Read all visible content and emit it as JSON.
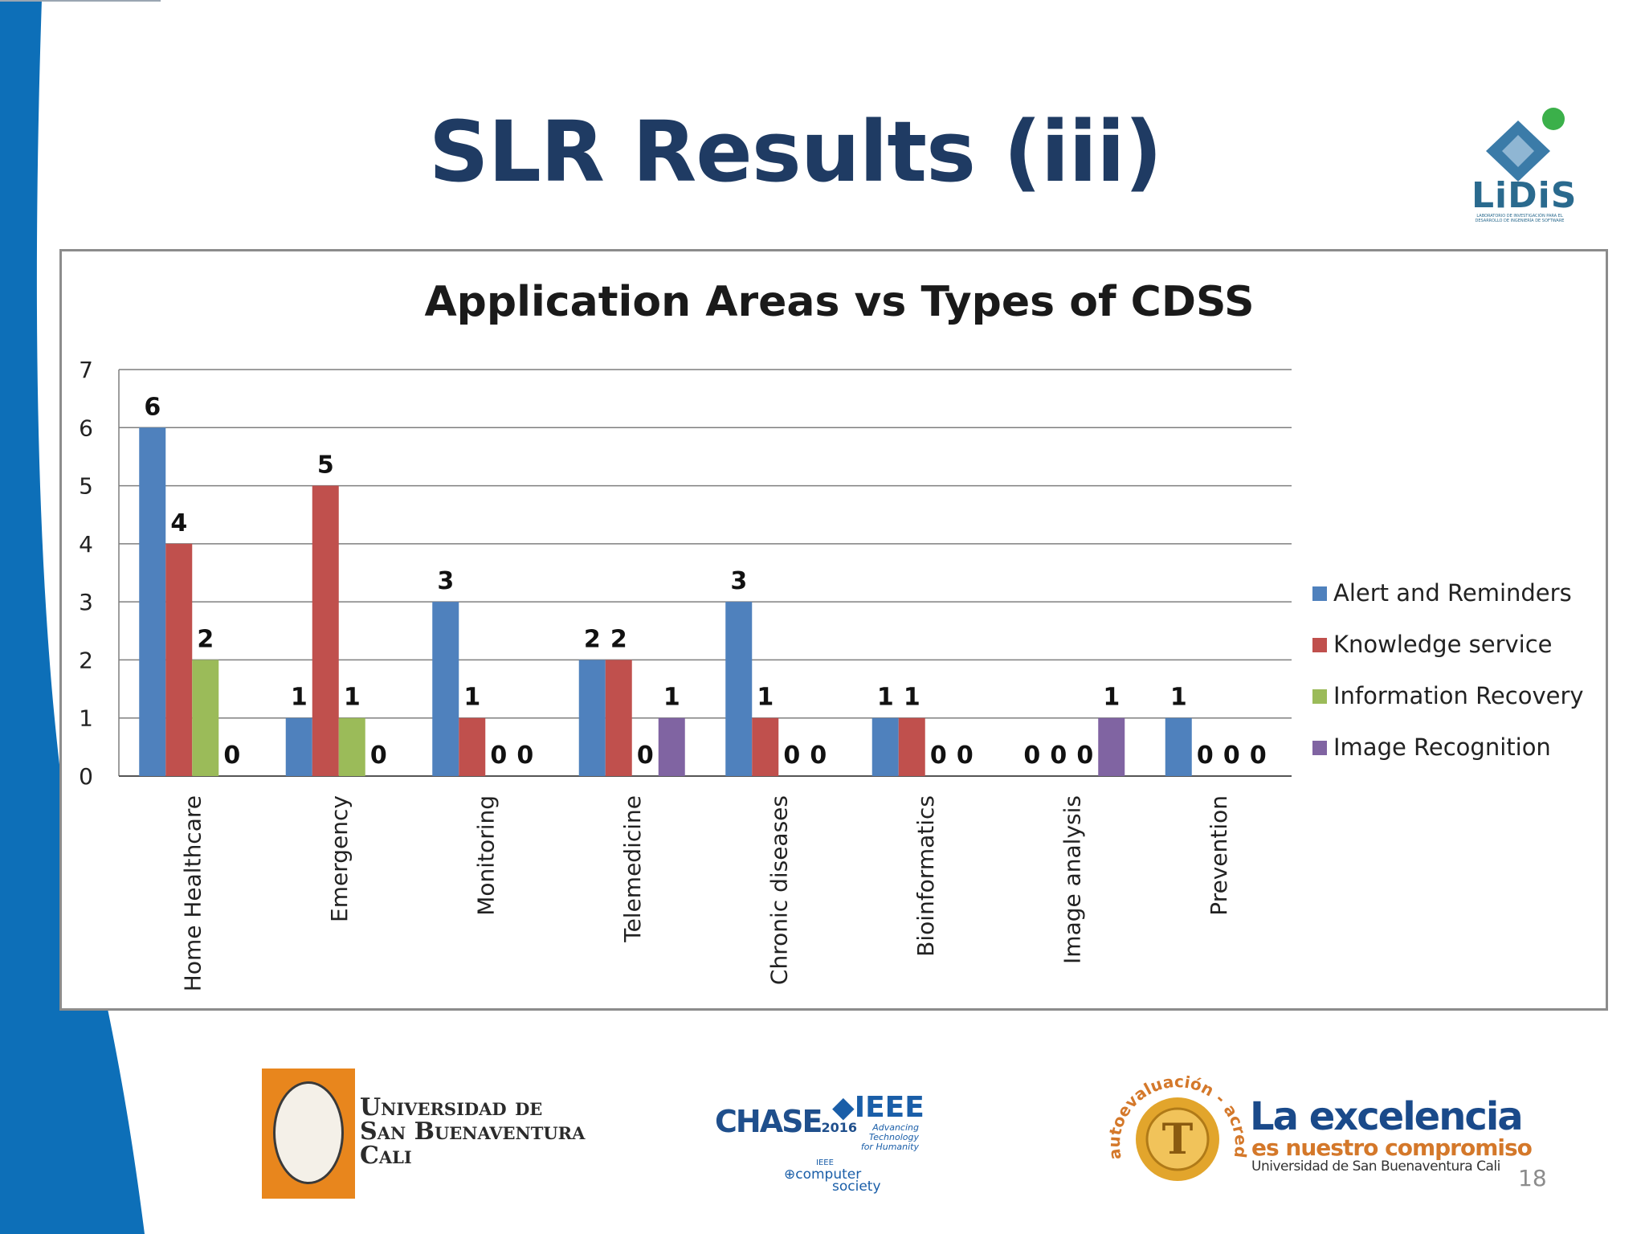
{
  "slide": {
    "title": "SLR Results (iii)",
    "page_number": "18",
    "accent_color": "#0d6fb8",
    "title_color": "#1f3b63"
  },
  "logos": {
    "lidis": {
      "text": "LiDiS",
      "subtext": "LABORATORIO DE INVESTIGACIÓN PARA EL DESARROLLO DE INGENIERÍA DE SOFTWARE"
    },
    "university": {
      "line1": "Universidad de",
      "line2": "San Buenaventura",
      "line3": "Cali"
    },
    "chase": {
      "text": "CHASE",
      "year": "2016"
    },
    "ieee": {
      "text": "IEEE",
      "tagline1": "Advancing Technology",
      "tagline2": "for Humanity"
    },
    "computer_society": {
      "ieee": "IEEE",
      "line1": "computer",
      "line2": "society"
    },
    "accreditation": {
      "arc_text": "autoevaluación - acreditación"
    },
    "excellence": {
      "line1": "La excelencia",
      "line2": "es nuestro compromiso",
      "line3": "Universidad de San Buenaventura Cali"
    }
  },
  "chart_data": {
    "type": "bar",
    "title": "Application Areas vs Types of CDSS",
    "xlabel": "",
    "ylabel": "",
    "ylim": [
      0,
      7
    ],
    "yticks": [
      0,
      1,
      2,
      3,
      4,
      5,
      6,
      7
    ],
    "grid": true,
    "legend_position": "right",
    "categories": [
      "Home Healthcare",
      "Emergency",
      "Monitoring",
      "Telemedicine",
      "Chronic diseases",
      "Bioinformatics",
      "Image analysis",
      "Prevention"
    ],
    "series": [
      {
        "name": "Alert and Reminders",
        "color": "#4f81bd",
        "values": [
          6,
          1,
          3,
          2,
          3,
          1,
          0,
          1
        ]
      },
      {
        "name": "Knowledge service",
        "color": "#c0504d",
        "values": [
          4,
          5,
          1,
          2,
          1,
          1,
          0,
          0
        ]
      },
      {
        "name": "Information Recovery",
        "color": "#9bbb59",
        "values": [
          2,
          1,
          0,
          0,
          0,
          0,
          0,
          0
        ]
      },
      {
        "name": "Image Recognition",
        "color": "#8064a2",
        "values": [
          0,
          0,
          0,
          1,
          0,
          0,
          1,
          0
        ]
      }
    ]
  }
}
